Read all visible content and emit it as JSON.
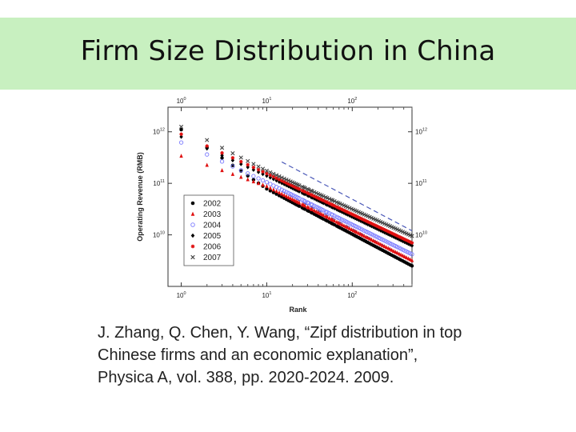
{
  "slide": {
    "title": "Firm Size Distribution in China",
    "citation_lines": [
      "J. Zhang, Q. Chen, Y. Wang, “Zipf distribution in top",
      "Chinese firms and an economic explanation”,",
      "Physica A, vol. 388, pp. 2020-2024. 2009."
    ]
  },
  "colors": {
    "title_band": "#c8f0c0",
    "fit_lines": "#4a58b8"
  },
  "chart_data": {
    "type": "scatter",
    "xlabel": "Rank",
    "ylabel": "Operating Revenue (RMB)",
    "xscale": "log",
    "yscale": "log",
    "xlim": [
      0.7,
      500
    ],
    "ylim": [
      1000000000,
      3000000000000
    ],
    "x_ticks": [
      {
        "value": 1,
        "base": "10",
        "exp": "0"
      },
      {
        "value": 10,
        "base": "10",
        "exp": "1"
      },
      {
        "value": 100,
        "base": "10",
        "exp": "2"
      }
    ],
    "y_ticks": [
      {
        "value": 10000000000,
        "base": "10",
        "exp": "10"
      },
      {
        "value": 100000000000,
        "base": "10",
        "exp": "11"
      },
      {
        "value": 1000000000000,
        "base": "10",
        "exp": "12"
      }
    ],
    "legend_position": "left",
    "fit_lines": [
      {
        "x": [
          15,
          500
        ],
        "y": [
          260000000000,
          12000000000
        ]
      },
      {
        "x": [
          15,
          500
        ],
        "y": [
          70000000000,
          3200000000
        ]
      }
    ],
    "series": [
      {
        "name": "2002",
        "marker": "dot",
        "color": "#000000",
        "y_rank1": 1100000000000,
        "y_rank10": 78000000000,
        "y_rank500": 2500000000
      },
      {
        "name": "2003",
        "marker": "triangle",
        "color": "#e01010",
        "y_rank1": 340000000000,
        "y_rank10": 88000000000,
        "y_rank500": 3200000000
      },
      {
        "name": "2004",
        "marker": "circle",
        "color": "#7a7aff",
        "y_rank1": 620000000000,
        "y_rank10": 105000000000,
        "y_rank500": 4200000000
      },
      {
        "name": "2005",
        "marker": "diamond",
        "color": "#000000",
        "y_rank1": 800000000000,
        "y_rank10": 140000000000,
        "y_rank500": 6200000000
      },
      {
        "name": "2006",
        "marker": "star",
        "color": "#e01010",
        "y_rank1": 900000000000,
        "y_rank10": 155000000000,
        "y_rank500": 7000000000
      },
      {
        "name": "2007",
        "marker": "x",
        "color": "#444444",
        "y_rank1": 1250000000000,
        "y_rank10": 175000000000,
        "y_rank500": 9500000000
      }
    ]
  }
}
